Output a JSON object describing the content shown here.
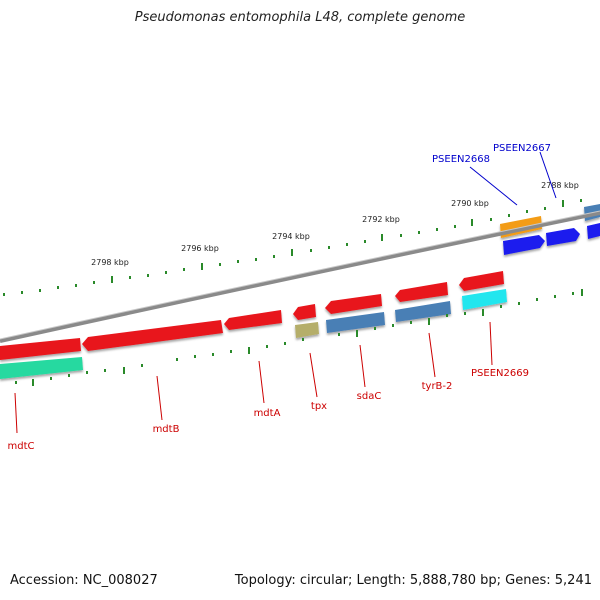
{
  "title": "Pseudomonas entomophila L48, complete genome",
  "footer": {
    "accession": "Accession: NC_008027",
    "summary": "Topology: circular; Length: 5,888,780 bp; Genes: 5,241"
  },
  "scale_labels": [
    "2798 kbp",
    "2796 kbp",
    "2794 kbp",
    "2792 kbp",
    "2790 kbp",
    "2788 kbp"
  ],
  "gene_labels": [
    {
      "text": "mdtC",
      "color": "#cc0000"
    },
    {
      "text": "mdtB",
      "color": "#cc0000"
    },
    {
      "text": "mdtA",
      "color": "#cc0000"
    },
    {
      "text": "tpx",
      "color": "#cc0000"
    },
    {
      "text": "sdaC",
      "color": "#cc0000"
    },
    {
      "text": "tyrB-2",
      "color": "#cc0000"
    },
    {
      "text": "PSEEN2669",
      "color": "#cc0000"
    },
    {
      "text": "PSEEN2668",
      "color": "#0000cc"
    },
    {
      "text": "PSEEN2667",
      "color": "#0000cc"
    }
  ],
  "colors": {
    "red_gene": "#e8141b",
    "steelblue_gene": "#4a7fb5",
    "blue_gene": "#1a1aee",
    "orange_gene": "#f39c12",
    "cyan_gene": "#22e6ee",
    "green_gene": "#28d9a0",
    "olive_gene": "#b5ae6a",
    "backbone": "#8a8a8a",
    "tick": "#2a8a2a"
  }
}
